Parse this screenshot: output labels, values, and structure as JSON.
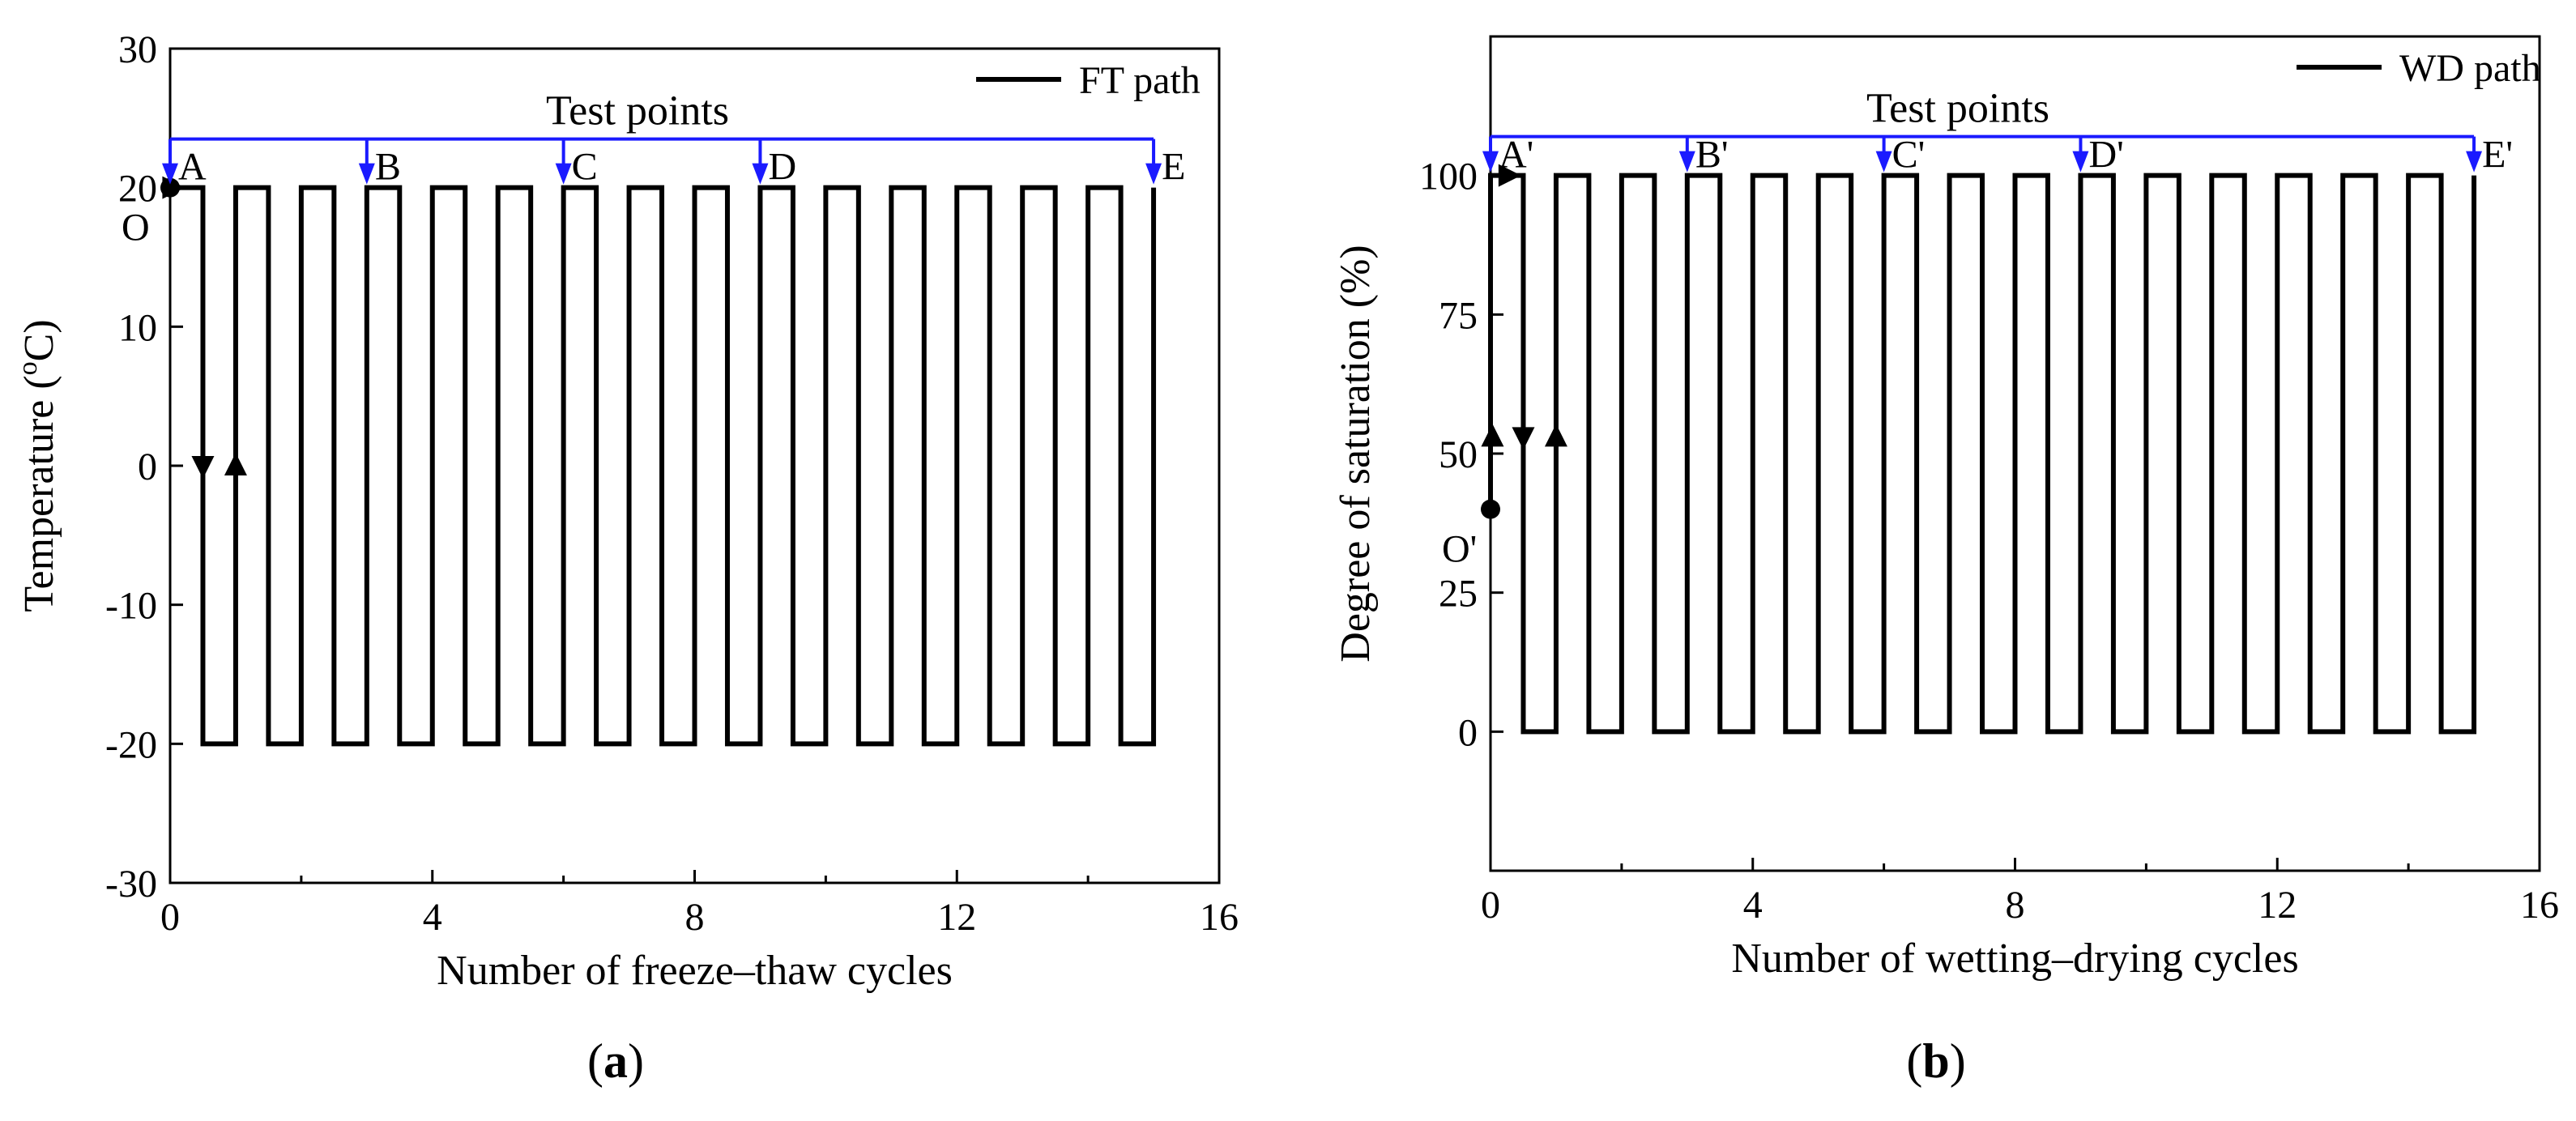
{
  "chart_data": [
    {
      "type": "line",
      "id": "a",
      "panel_label_open": "(",
      "panel_label_letter": "a",
      "panel_label_close": ")",
      "xlabel": "Number of freeze–thaw cycles",
      "ylabel_prefix": "Temperature (",
      "ylabel_sup": "o",
      "ylabel_suffix": "C)",
      "xlim": [
        0,
        16
      ],
      "ylim": [
        -30,
        30
      ],
      "xticks": [
        0,
        4,
        8,
        12,
        16
      ],
      "yticks": [
        -30,
        -20,
        -10,
        0,
        10,
        20,
        30
      ],
      "grid": false,
      "legend": {
        "position": "top-right",
        "entries": [
          "FT path"
        ]
      },
      "series": [
        {
          "name": "FT path",
          "color": "#000000",
          "cycles": 15,
          "high": 20,
          "low": -20,
          "start": {
            "x": 0,
            "y": 20
          },
          "origin_label": "O"
        }
      ],
      "test_points": {
        "title": "Test points",
        "y": 23.5,
        "color": "#1a1aff",
        "points": [
          {
            "x": 0,
            "label": "A"
          },
          {
            "x": 3,
            "label": "B"
          },
          {
            "x": 6,
            "label": "C"
          },
          {
            "x": 9,
            "label": "D"
          },
          {
            "x": 15,
            "label": "E"
          }
        ]
      },
      "direction_arrows": [
        {
          "x": 0.03,
          "y": 20,
          "dir": "right"
        },
        {
          "x": 0.5,
          "y": 0,
          "dir": "down"
        },
        {
          "x": 1.0,
          "y": 0,
          "dir": "up"
        }
      ]
    },
    {
      "type": "line",
      "id": "b",
      "panel_label_open": "(",
      "panel_label_letter": "b",
      "panel_label_close": ")",
      "xlabel": "Number of wetting–drying cycles",
      "ylabel_prefix": "Degree of saturation (%)",
      "ylabel_sup": "",
      "ylabel_suffix": "",
      "xlim": [
        0,
        16
      ],
      "ylim": [
        -25,
        125
      ],
      "xticks": [
        0,
        4,
        8,
        12,
        16
      ],
      "yticks": [
        0,
        25,
        50,
        75,
        100
      ],
      "grid": false,
      "legend": {
        "position": "top-right",
        "entries": [
          "WD path"
        ]
      },
      "series": [
        {
          "name": "WD path",
          "color": "#000000",
          "cycles": 15,
          "high": 100,
          "low": 0,
          "start": {
            "x": 0,
            "y": 40
          },
          "origin_label": "O'"
        }
      ],
      "test_points": {
        "title": "Test points",
        "y": 107,
        "color": "#1a1aff",
        "points": [
          {
            "x": 0,
            "label": "A'"
          },
          {
            "x": 3,
            "label": "B'"
          },
          {
            "x": 6,
            "label": "C'"
          },
          {
            "x": 9,
            "label": "D'"
          },
          {
            "x": 15,
            "label": "E'"
          }
        ]
      },
      "direction_arrows": [
        {
          "x": 0.03,
          "y": 53,
          "dir": "up"
        },
        {
          "x": 0.5,
          "y": 53,
          "dir": "down"
        },
        {
          "x": 1.0,
          "y": 53,
          "dir": "up"
        },
        {
          "x": 0.27,
          "y": 100,
          "dir": "right"
        }
      ]
    }
  ]
}
